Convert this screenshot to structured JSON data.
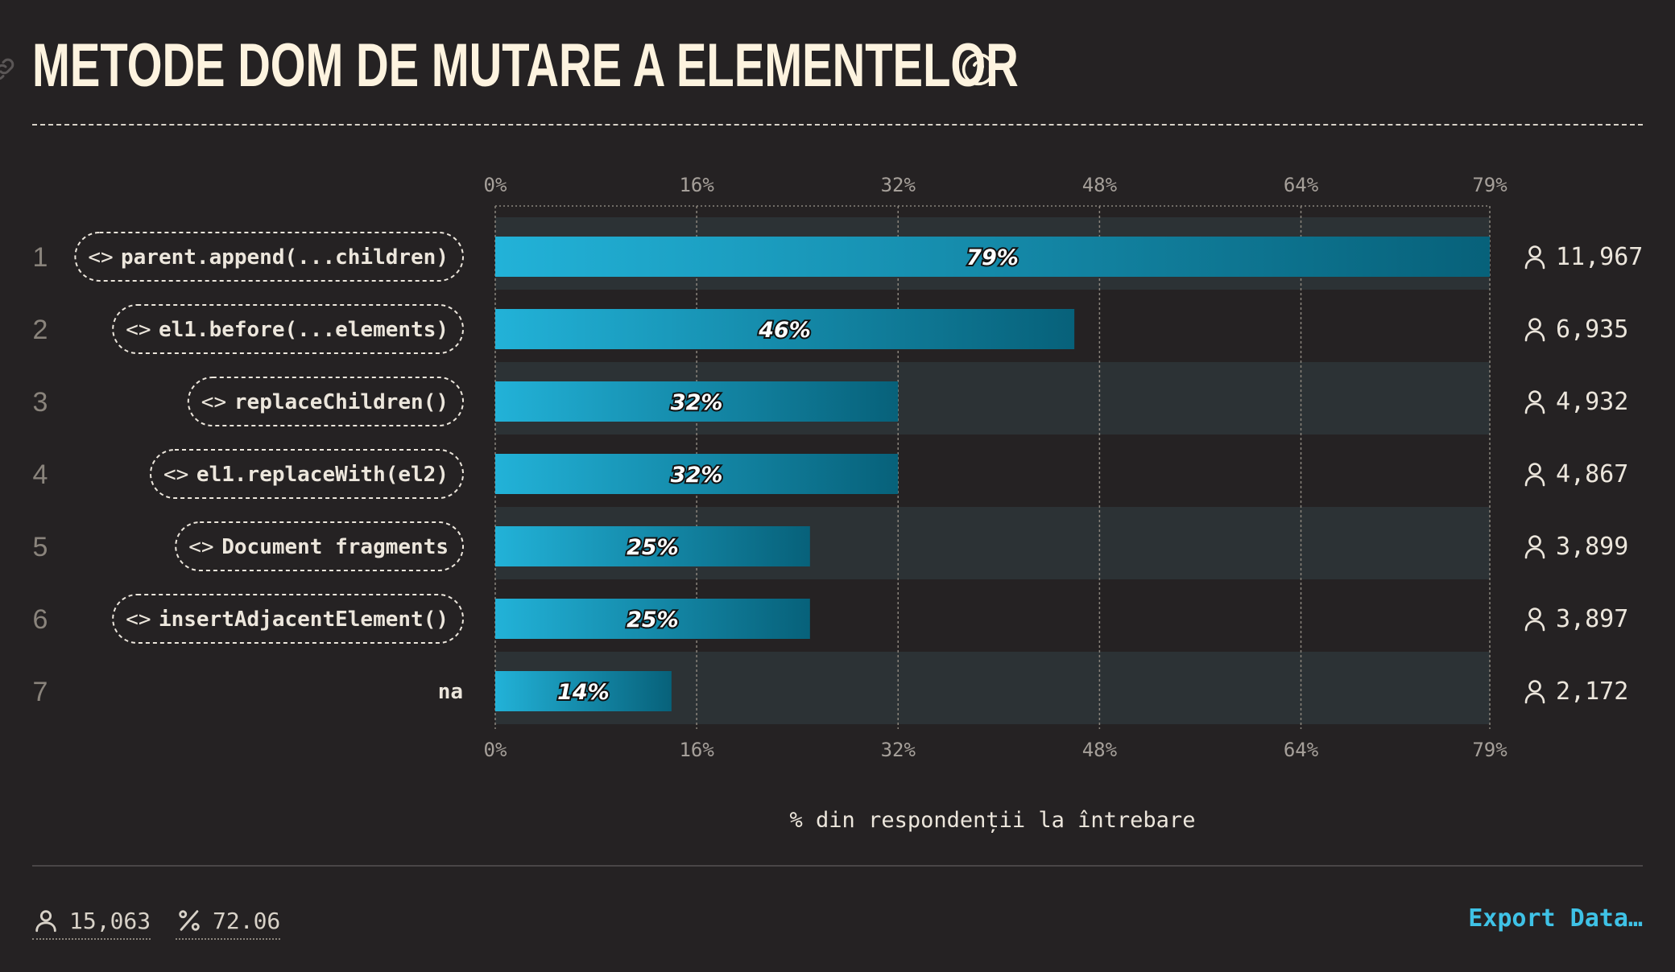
{
  "title": "METODE DOM DE MUTARE A ELEMENTELOR",
  "icons": {
    "link": "link-icon",
    "help": "question-circle-icon",
    "user": "user-icon",
    "percent": "percent-icon",
    "code": "code-brackets-icon"
  },
  "colors": {
    "bar_start": "#22b2d8",
    "bar_end": "#07617a",
    "accent": "#3fc2e6",
    "row_band": "#2c3235"
  },
  "chart_data": {
    "type": "bar",
    "orientation": "horizontal",
    "categories": [
      "parent.append(...children)",
      "el1.before(...elements)",
      "replaceChildren()",
      "el1.replaceWith(el2)",
      "Document fragments",
      "insertAdjacentElement()",
      "na"
    ],
    "ranks": [
      "1",
      "2",
      "3",
      "4",
      "5",
      "6",
      "7"
    ],
    "code_categories": [
      true,
      true,
      true,
      true,
      true,
      true,
      false
    ],
    "values": [
      79,
      46,
      32,
      32,
      25,
      25,
      14
    ],
    "value_labels": [
      "79%",
      "46%",
      "32%",
      "32%",
      "25%",
      "25%",
      "14%"
    ],
    "counts": [
      "11,967",
      "6,935",
      "4,932",
      "4,867",
      "3,899",
      "3,897",
      "2,172"
    ],
    "x_ticks": [
      0,
      16,
      32,
      48,
      64,
      79
    ],
    "x_tick_labels": [
      "0%",
      "16%",
      "32%",
      "48%",
      "64%",
      "79%"
    ],
    "xlim": [
      0,
      79
    ],
    "xlabel": "% din respondenții la întrebare",
    "grid": true
  },
  "footer": {
    "respondents": "15,063",
    "percent": "72.06",
    "export_label": "Export Data…"
  }
}
